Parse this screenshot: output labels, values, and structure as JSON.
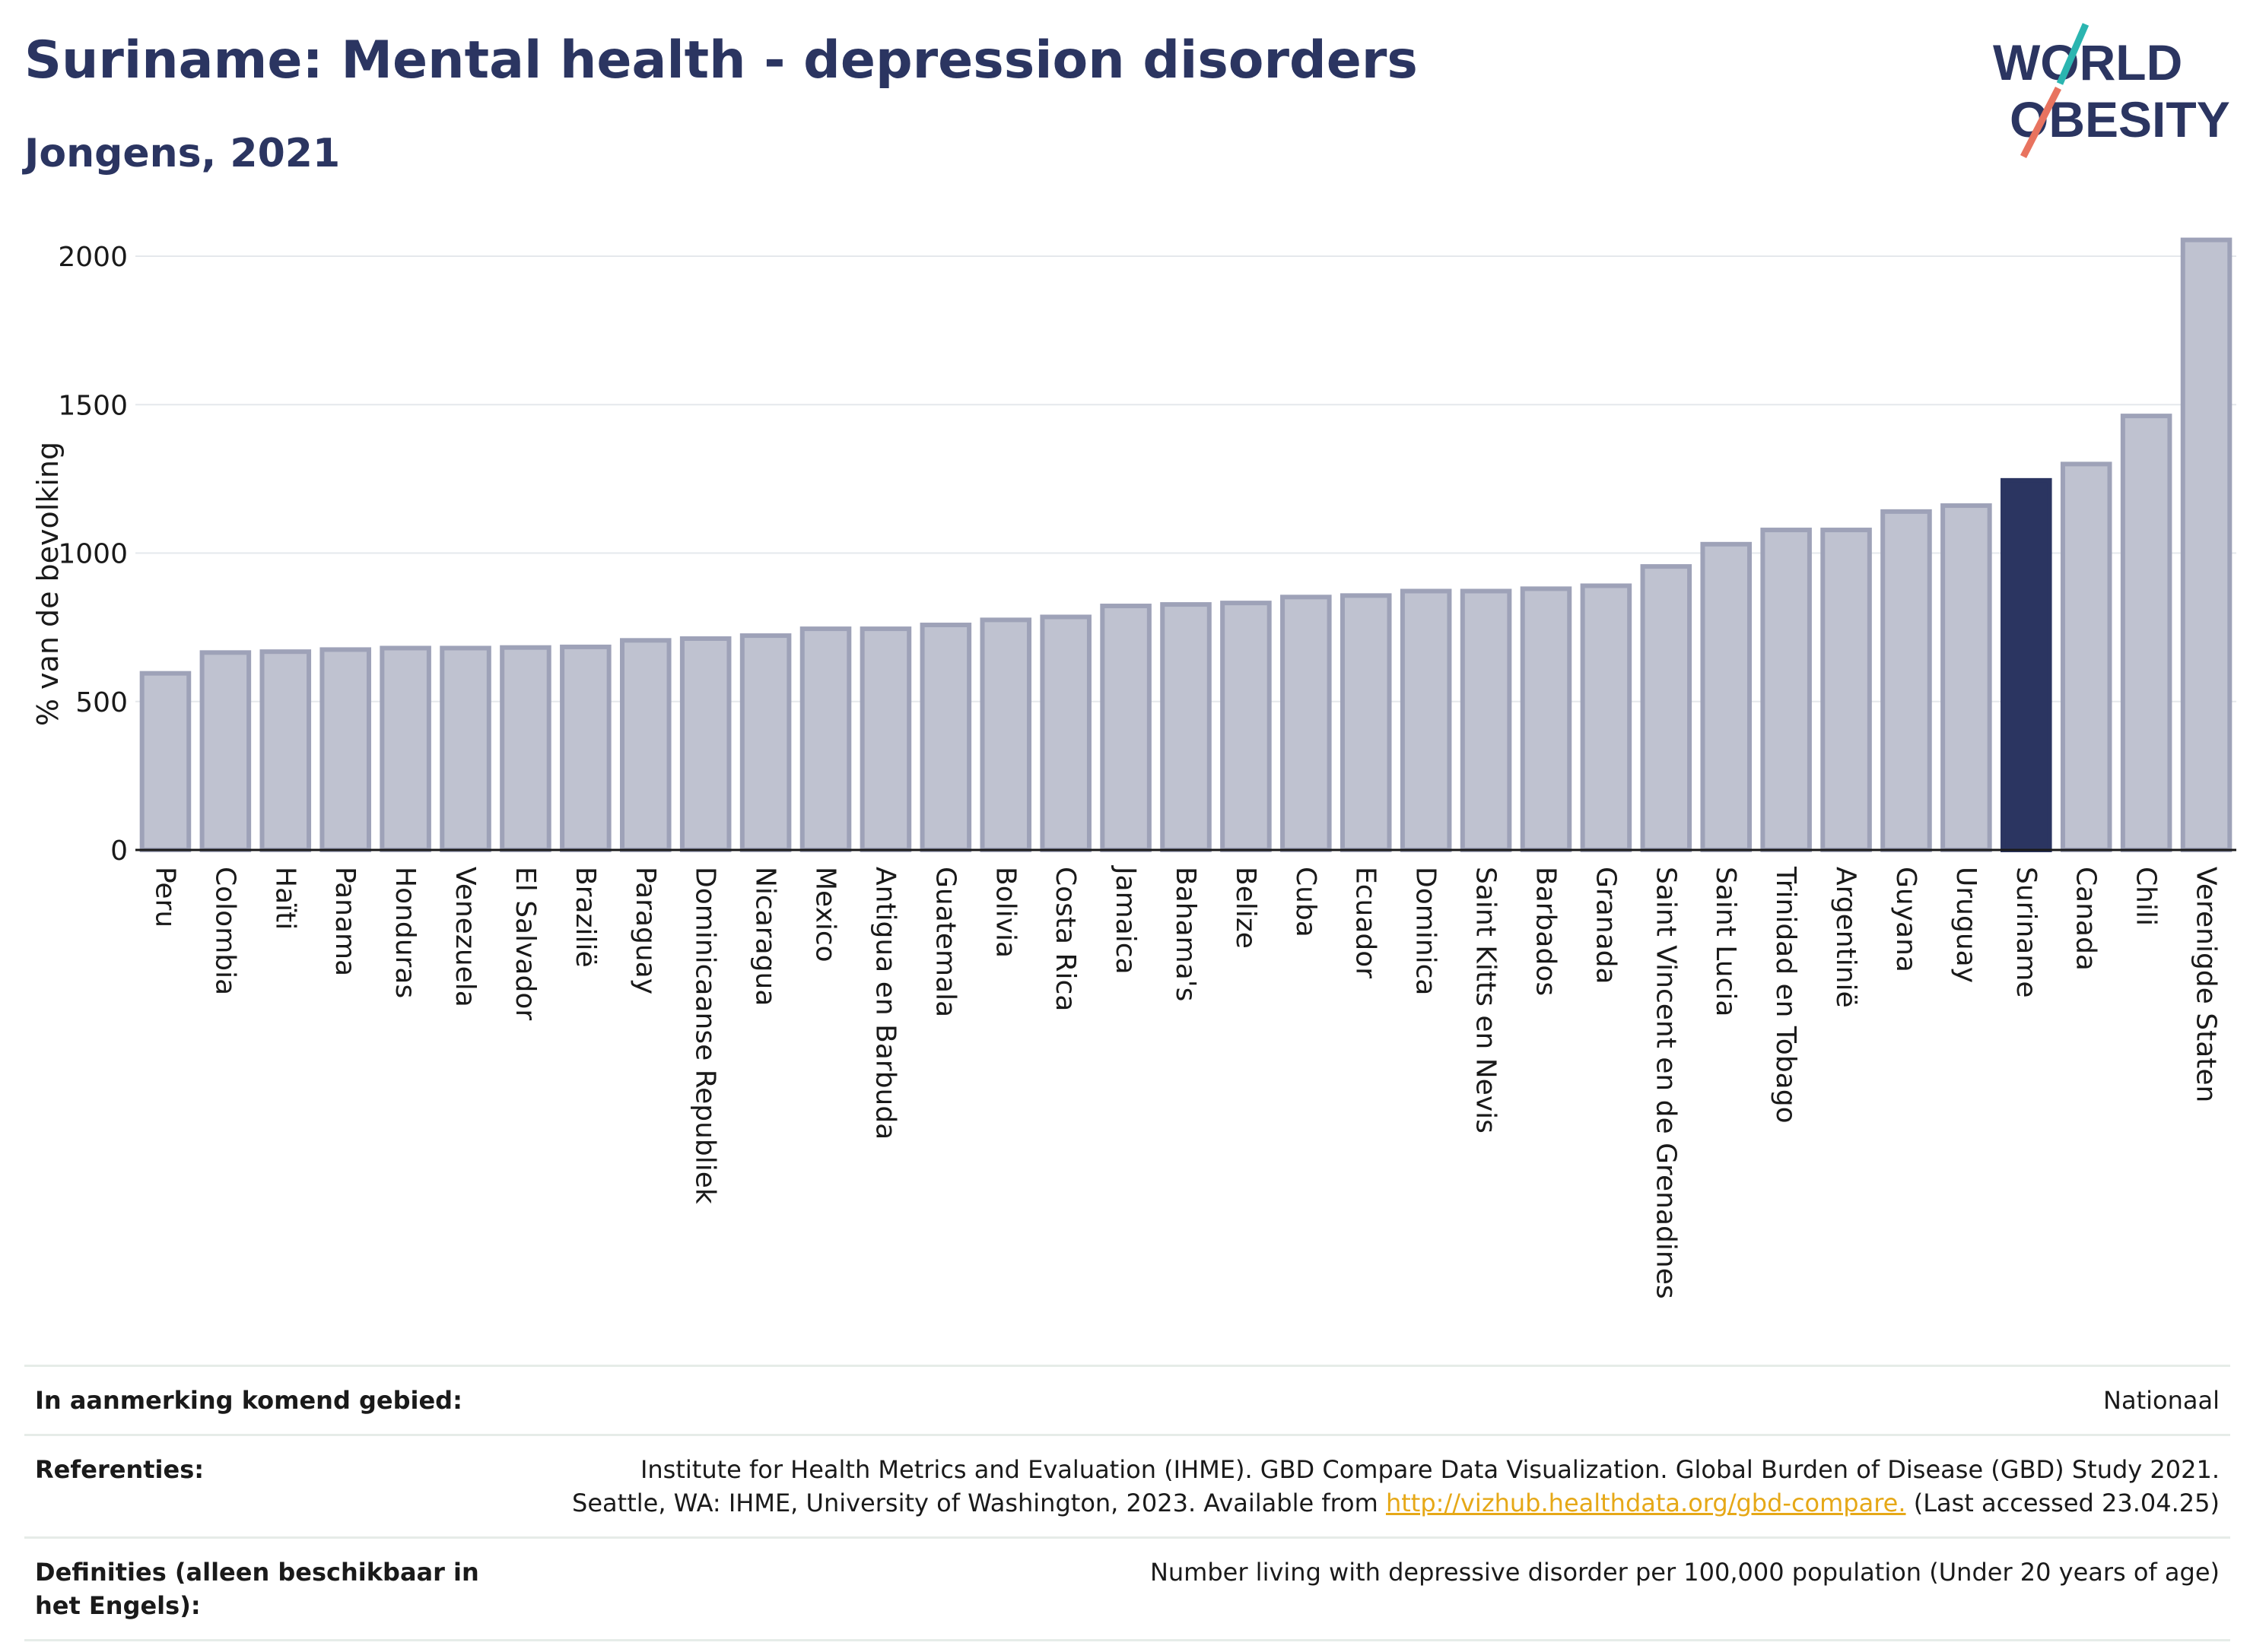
{
  "header": {
    "title": "Suriname: Mental health - depression disorders",
    "subtitle": "Jongens, 2021"
  },
  "logo": {
    "line1": "WORLD",
    "line2": "OBESITY"
  },
  "colors": {
    "bar": "#bfc2d0",
    "bar_border": "#9ea2b8",
    "highlight": "#2b3561",
    "title": "#2b3561",
    "link": "#e6a817"
  },
  "chart_data": {
    "type": "bar",
    "ylabel": "% van de bevolking",
    "ylim": [
      0,
      2100
    ],
    "yticks": [
      0,
      500,
      1000,
      1500,
      2000
    ],
    "grid": true,
    "highlight": "Suriname",
    "categories": [
      "Peru",
      "Colombia",
      "Haïti",
      "Panama",
      "Honduras",
      "Venezuela",
      "El Salvador",
      "Brazilië",
      "Paraguay",
      "Dominicaanse Republiek",
      "Nicaragua",
      "Mexico",
      "Antigua en Barbuda",
      "Guatemala",
      "Bolivia",
      "Costa Rica",
      "Jamaica",
      "Bahama's",
      "Belize",
      "Cuba",
      "Ecuador",
      "Dominica",
      "Saint Kitts en Nevis",
      "Barbados",
      "Granada",
      "Saint Vincent en de Grenadines",
      "Saint Lucia",
      "Trinidad en Tobago",
      "Argentinië",
      "Guyana",
      "Uruguay",
      "Suriname",
      "Canada",
      "Chili",
      "Verenigde Staten"
    ],
    "values": [
      595,
      665,
      668,
      675,
      680,
      680,
      682,
      684,
      706,
      712,
      722,
      745,
      745,
      758,
      775,
      785,
      822,
      827,
      832,
      852,
      857,
      872,
      872,
      880,
      890,
      955,
      1030,
      1078,
      1078,
      1140,
      1160,
      1245,
      1300,
      1462,
      2055
    ]
  },
  "info": {
    "rows": [
      {
        "label": "In aanmerking komend gebied:",
        "value": "Nationaal"
      },
      {
        "label": "Referenties:",
        "value": "Institute for Health Metrics and Evaluation (IHME). GBD Compare Data Visualization. Global Burden of Disease (GBD) Study 2021.",
        "value2": "Seattle, WA: IHME, University of Washington, 2023. Available from ",
        "link": "http://vizhub.healthdata.org/gbd-compare.",
        "value3": " (Last accessed 23.04.25)"
      },
      {
        "label": "Definities (alleen beschikbaar in het Engels):",
        "value": "Number living with depressive disorder per 100,000 population (Under 20 years of age)"
      }
    ]
  }
}
